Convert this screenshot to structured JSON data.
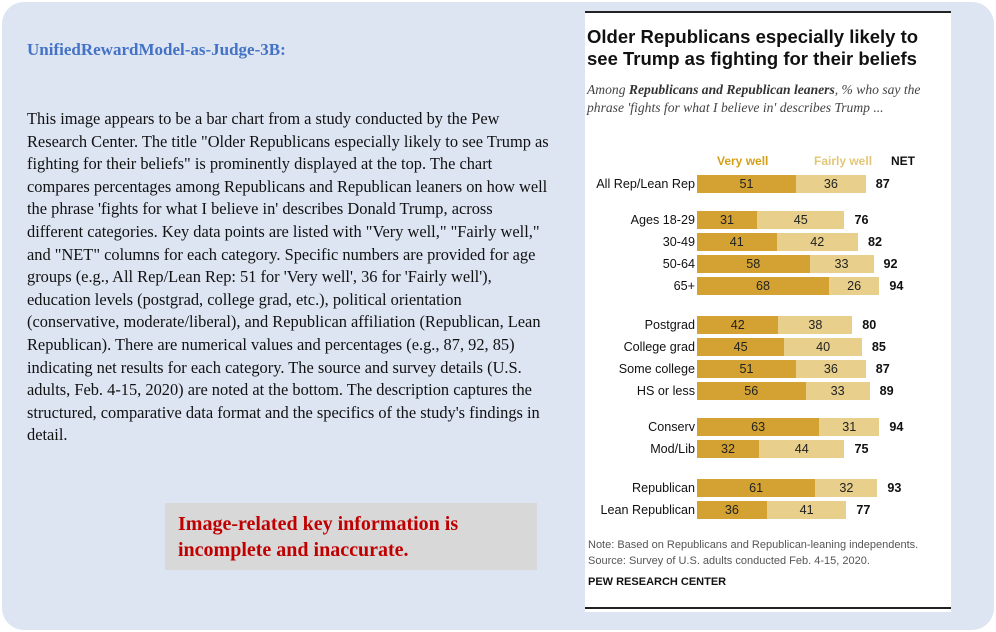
{
  "judge": {
    "model_name": "UnifiedRewardModel-as-Judge-3B:",
    "description": "This image appears to be a bar chart from a study conducted by the Pew Research Center. The title \"Older Republicans especially likely to see Trump as fighting for their beliefs\" is prominently displayed at the top. The chart compares percentages among Republicans and Republican leaners on how well the phrase 'fights for what I believe in' describes Donald Trump, across different categories. Key data points are listed with \"Very well,\" \"Fairly well,\" and \"NET\" columns for each category. Specific numbers are provided for age groups (e.g., All Rep/Lean Rep: 51 for 'Very well', 36 for 'Fairly well'), education levels (postgrad, college grad, etc.), political orientation (conservative, moderate/liberal), and Republican affiliation (Republican, Lean Republican). There are numerical values and percentages (e.g., 87, 92, 85) indicating net results for each category. The source and survey details (U.S. adults, Feb. 4-15, 2020) are noted at the bottom. The description captures the structured, comparative data format and the specifics of the study's findings in detail.",
    "verdict": "Image-related key information is incomplete and inaccurate."
  },
  "chart": {
    "title": "Older Republicans especially likely to see Trump as fighting for their beliefs",
    "subtitle_pre": "Among ",
    "subtitle_bold": "Republicans and Republican leaners",
    "subtitle_post": ", % who say the phrase 'fights for what I believe in' describes Trump ...",
    "note": "Note: Based on Republicans and Republican-leaning independents.",
    "source": "Source: Survey of U.S. adults conducted Feb. 4-15, 2020.",
    "org": "PEW RESEARCH CENTER"
  },
  "colors": {
    "very_well": "#d4a233",
    "fairly_well": "#e8cf8b",
    "accent": "#4472c4",
    "verdict": "#c00000"
  },
  "chart_data": {
    "type": "bar",
    "orientation": "horizontal-stacked",
    "legend": [
      "Very well",
      "Fairly well",
      "NET"
    ],
    "categories": [
      "All Rep/Lean Rep",
      "Ages 18-29",
      "30-49",
      "50-64",
      "65+",
      "Postgrad",
      "College grad",
      "Some college",
      "HS or less",
      "Conserv",
      "Mod/Lib",
      "Republican",
      "Lean Republican"
    ],
    "series": [
      {
        "name": "Very well",
        "values": [
          51,
          31,
          41,
          58,
          68,
          42,
          45,
          51,
          56,
          63,
          32,
          61,
          36
        ]
      },
      {
        "name": "Fairly well",
        "values": [
          36,
          45,
          42,
          33,
          26,
          38,
          40,
          36,
          33,
          31,
          44,
          32,
          41
        ]
      }
    ],
    "net": [
      87,
      76,
      82,
      92,
      94,
      80,
      85,
      87,
      89,
      94,
      75,
      93,
      77
    ]
  }
}
